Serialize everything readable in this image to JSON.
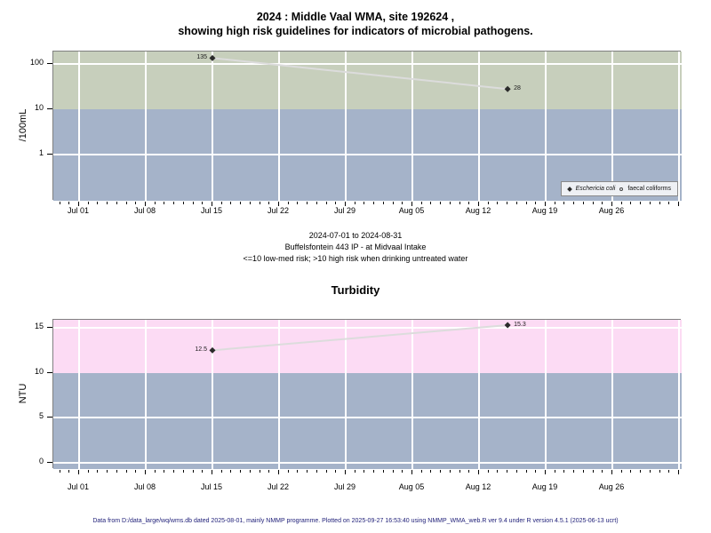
{
  "title": {
    "line1": "2024 : Middle Vaal WMA, site 192624 ,",
    "line2": "showing high risk guidelines for indicators of microbial pathogens."
  },
  "caption": {
    "date_range": "2024-07-01 to 2024-08-31",
    "site": "Buffelsfontein 443 IP - at Midvaal Intake",
    "risk_note": "<=10 low-med risk; >10 high risk when drinking untreated water"
  },
  "footer": "Data from D:/data_large/wq/wms.db dated 2025-08-01, mainly NMMP programme. Plotted on 2025-09-27 16:53:40 using NMMP_WMA_web.R ver 9.4 under R version 4.5.1 (2025-06-13 ucrt)",
  "colors": {
    "high_risk_microbial_band": "#c7cfbc",
    "low_risk_band": "#a5b3c9",
    "high_risk_turbidity_band": "#fcdbf4",
    "trend_line": "#dcdcdc",
    "marker": "#2b2b2b",
    "gridline": "#ffffff",
    "plot_border": "#808080",
    "footer_text": "#22227a"
  },
  "chart_data": [
    {
      "type": "line",
      "title": "",
      "ylabel": "/100mL",
      "yscale": "log",
      "yticks": [
        1,
        10,
        100
      ],
      "guideline": 10,
      "x_range": [
        "2024-07-01",
        "2024-08-31"
      ],
      "x_tick_labels": [
        "Jul 01",
        "Jul 08",
        "Jul 15",
        "Jul 22",
        "Jul 29",
        "Aug 05",
        "Aug 12",
        "Aug 19",
        "Aug 26"
      ],
      "legend_position": "bottom-right",
      "series": [
        {
          "name": "Eschericia coli",
          "marker": "filled-diamond",
          "points": [
            {
              "date": "2024-07-15",
              "value": 135
            },
            {
              "date": "2024-08-15",
              "value": 28
            }
          ]
        },
        {
          "name": "faecal coliforms",
          "marker": "open-circle",
          "points": []
        }
      ]
    },
    {
      "type": "line",
      "title": "Turbidity",
      "ylabel": "NTU",
      "yscale": "linear",
      "yticks": [
        0,
        5,
        10,
        15
      ],
      "guideline": 10,
      "x_range": [
        "2024-07-01",
        "2024-08-31"
      ],
      "x_tick_labels": [
        "Jul 01",
        "Jul 08",
        "Jul 15",
        "Jul 22",
        "Jul 29",
        "Aug 05",
        "Aug 12",
        "Aug 19",
        "Aug 26"
      ],
      "series": [
        {
          "name": "Turbidity",
          "marker": "filled-diamond",
          "points": [
            {
              "date": "2024-07-15",
              "value": 12.5
            },
            {
              "date": "2024-08-15",
              "value": 15.3
            }
          ]
        }
      ]
    }
  ]
}
